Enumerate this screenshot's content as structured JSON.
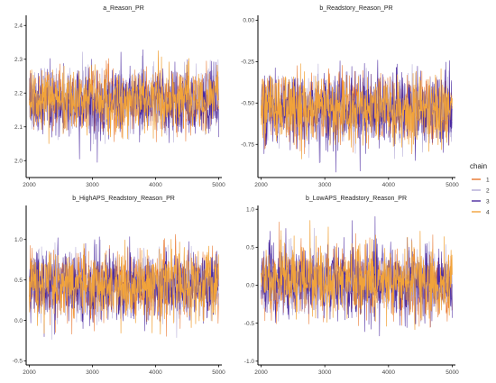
{
  "colors": {
    "chain_1": "#e8742b",
    "chain_2": "#b3aad6",
    "chain_3": "#4b2aa0",
    "chain_4": "#f1a33a",
    "axis": "#000000",
    "text": "#222222"
  },
  "legend": {
    "title": "chain",
    "labels": [
      "1",
      "2",
      "3",
      "4"
    ]
  },
  "chart_data": [
    {
      "type": "line",
      "title": "a_Reason_PR",
      "xlabel": "",
      "ylabel": "",
      "xlim": [
        1950,
        5050
      ],
      "ylim": [
        1.95,
        2.43
      ],
      "xticks": [
        2000,
        3000,
        4000,
        5000
      ],
      "xtick_labels": [
        "2000",
        "3000",
        "4000",
        "5000"
      ],
      "yticks": [
        2.0,
        2.1,
        2.2,
        2.3,
        2.4
      ],
      "ytick_labels": [
        "2.0",
        "2.1",
        "2.2",
        "2.3",
        "2.4"
      ],
      "grid": false,
      "x_range": [
        2000,
        5000
      ],
      "series": [
        {
          "name": "1",
          "center": 2.18,
          "sd": 0.045,
          "min": 2.02,
          "max": 2.37
        },
        {
          "name": "2",
          "center": 2.18,
          "sd": 0.045,
          "min": 2.0,
          "max": 2.38
        },
        {
          "name": "3",
          "center": 2.17,
          "sd": 0.05,
          "min": 1.96,
          "max": 2.42
        },
        {
          "name": "4",
          "center": 2.18,
          "sd": 0.045,
          "min": 2.02,
          "max": 2.38
        }
      ]
    },
    {
      "type": "line",
      "title": "b_Readstory_Reason_PR",
      "xlabel": "",
      "ylabel": "",
      "xlim": [
        1950,
        5050
      ],
      "ylim": [
        -0.95,
        0.03
      ],
      "xticks": [
        2000,
        3000,
        4000,
        5000
      ],
      "xtick_labels": [
        "2000",
        "3000",
        "4000",
        "5000"
      ],
      "yticks": [
        0.0,
        -0.25,
        -0.5,
        -0.75
      ],
      "ytick_labels": [
        "0.00",
        "-0.25",
        "-0.50",
        "-0.75"
      ],
      "grid": false,
      "x_range": [
        2000,
        5000
      ],
      "series": [
        {
          "name": "1",
          "center": -0.53,
          "sd": 0.1,
          "min": -0.88,
          "max": -0.12
        },
        {
          "name": "2",
          "center": -0.53,
          "sd": 0.1,
          "min": -0.9,
          "max": -0.1
        },
        {
          "name": "3",
          "center": -0.54,
          "sd": 0.11,
          "min": -0.92,
          "max": -0.08
        },
        {
          "name": "4",
          "center": -0.53,
          "sd": 0.1,
          "min": -0.88,
          "max": 0.01
        }
      ]
    },
    {
      "type": "line",
      "title": "b_HighAPS_Readstory_Reason_PR",
      "xlabel": "",
      "ylabel": "",
      "xlim": [
        1950,
        5050
      ],
      "ylim": [
        -0.55,
        1.42
      ],
      "xticks": [
        2000,
        3000,
        4000,
        5000
      ],
      "xtick_labels": [
        "2000",
        "3000",
        "4000",
        "5000"
      ],
      "yticks": [
        -0.5,
        0.0,
        0.5,
        1.0
      ],
      "ytick_labels": [
        "-0.5",
        "0.0",
        "0.5",
        "1.0"
      ],
      "grid": false,
      "x_range": [
        2000,
        5000
      ],
      "series": [
        {
          "name": "1",
          "center": 0.43,
          "sd": 0.2,
          "min": -0.2,
          "max": 1.1
        },
        {
          "name": "2",
          "center": 0.43,
          "sd": 0.2,
          "min": -0.25,
          "max": 1.05
        },
        {
          "name": "3",
          "center": 0.42,
          "sd": 0.22,
          "min": -0.45,
          "max": 1.1
        },
        {
          "name": "4",
          "center": 0.44,
          "sd": 0.2,
          "min": -0.2,
          "max": 1.38
        }
      ]
    },
    {
      "type": "line",
      "title": "b_LowAPS_Readstory_Reason_PR",
      "xlabel": "",
      "ylabel": "",
      "xlim": [
        1950,
        5050
      ],
      "ylim": [
        -1.05,
        1.05
      ],
      "xticks": [
        2000,
        3000,
        4000,
        5000
      ],
      "xtick_labels": [
        "2000",
        "3000",
        "4000",
        "5000"
      ],
      "yticks": [
        -1.0,
        -0.5,
        0.0,
        0.5,
        1.0
      ],
      "ytick_labels": [
        "-1.0",
        "-0.5",
        "0.0",
        "0.5",
        "1.0"
      ],
      "grid": false,
      "x_range": [
        2000,
        5000
      ],
      "series": [
        {
          "name": "1",
          "center": 0.05,
          "sd": 0.22,
          "min": -0.8,
          "max": 0.85
        },
        {
          "name": "2",
          "center": 0.05,
          "sd": 0.22,
          "min": -0.85,
          "max": 0.85
        },
        {
          "name": "3",
          "center": 0.04,
          "sd": 0.24,
          "min": -0.95,
          "max": 0.95
        },
        {
          "name": "4",
          "center": 0.06,
          "sd": 0.22,
          "min": -0.95,
          "max": 1.0
        }
      ]
    }
  ]
}
